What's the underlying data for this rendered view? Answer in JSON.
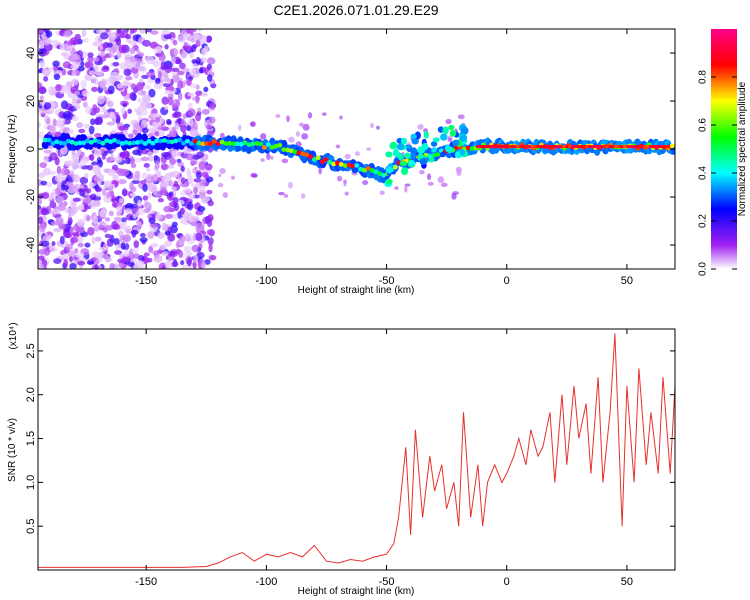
{
  "figure_title": "C2E1.2026.071.01.29.E29",
  "chart_data": [
    {
      "type": "heatmap",
      "xlabel": "Height of straight line (km)",
      "ylabel": "Frequency (Hz)",
      "xlim": [
        -195,
        70
      ],
      "ylim": [
        -50,
        50
      ],
      "x_ticks": [
        -150,
        -100,
        -50,
        0,
        50
      ],
      "y_ticks": [
        -40,
        -20,
        0,
        20,
        40
      ],
      "colorbar": {
        "label": "Normalized spectral amplitude",
        "range": [
          0,
          1
        ],
        "ticks": [
          "0.0",
          "0.2",
          "0.4",
          "0.6",
          "0.8"
        ],
        "colormap": "rainbow (white-violet-blue-cyan-green-yellow-red-magenta)"
      },
      "ridge": [
        {
          "x": -190,
          "y": 3
        },
        {
          "x": -130,
          "y": 3
        },
        {
          "x": -110,
          "y": 2
        },
        {
          "x": -95,
          "y": 1
        },
        {
          "x": -80,
          "y": -4
        },
        {
          "x": -70,
          "y": -6
        },
        {
          "x": -60,
          "y": -8
        },
        {
          "x": -50,
          "y": -11
        },
        {
          "x": -45,
          "y": -6
        },
        {
          "x": -35,
          "y": -3
        },
        {
          "x": -20,
          "y": 0
        },
        {
          "x": -10,
          "y": 1
        },
        {
          "x": 0,
          "y": 1
        },
        {
          "x": 20,
          "y": 1
        },
        {
          "x": 70,
          "y": 1
        }
      ]
    },
    {
      "type": "line",
      "xlabel": "Height of straight line (km)",
      "ylabel": "SNR (10 * v/v)",
      "y_multiplier": "(x10⁴)",
      "xlim": [
        -195,
        70
      ],
      "ylim": [
        0,
        2.75
      ],
      "x_ticks": [
        -150,
        -100,
        -50,
        0,
        50
      ],
      "y_ticks": [
        "0.5",
        "1.0",
        "1.5",
        "2.0",
        "2.5"
      ],
      "series": [
        {
          "color": "#e8302c",
          "x": [
            -195,
            -185,
            -175,
            -165,
            -155,
            -145,
            -135,
            -125,
            -120,
            -115,
            -110,
            -105,
            -100,
            -95,
            -90,
            -85,
            -80,
            -75,
            -70,
            -65,
            -60,
            -55,
            -50,
            -47,
            -45,
            -42,
            -40,
            -38,
            -35,
            -32,
            -30,
            -27,
            -25,
            -22,
            -20,
            -18,
            -15,
            -12,
            -10,
            -8,
            -5,
            -2,
            0,
            3,
            5,
            8,
            10,
            13,
            15,
            18,
            20,
            23,
            25,
            28,
            30,
            33,
            35,
            38,
            40,
            43,
            45,
            48,
            50,
            53,
            55,
            58,
            60,
            63,
            65,
            68,
            70
          ],
          "values": [
            0.03,
            0.03,
            0.03,
            0.03,
            0.03,
            0.03,
            0.03,
            0.04,
            0.08,
            0.15,
            0.2,
            0.1,
            0.18,
            0.15,
            0.2,
            0.15,
            0.28,
            0.1,
            0.08,
            0.12,
            0.1,
            0.15,
            0.18,
            0.3,
            0.6,
            1.4,
            0.4,
            1.6,
            0.6,
            1.3,
            0.9,
            1.2,
            0.7,
            1.0,
            0.5,
            1.8,
            0.6,
            1.2,
            0.5,
            1.0,
            1.2,
            1.0,
            1.1,
            1.3,
            1.5,
            1.2,
            1.6,
            1.3,
            1.4,
            1.8,
            1.0,
            2.0,
            1.2,
            2.1,
            1.5,
            1.9,
            1.1,
            2.2,
            1.0,
            1.8,
            2.7,
            0.5,
            2.1,
            1.0,
            2.3,
            1.2,
            1.8,
            1.1,
            2.2,
            1.1,
            2.1
          ]
        }
      ]
    }
  ]
}
